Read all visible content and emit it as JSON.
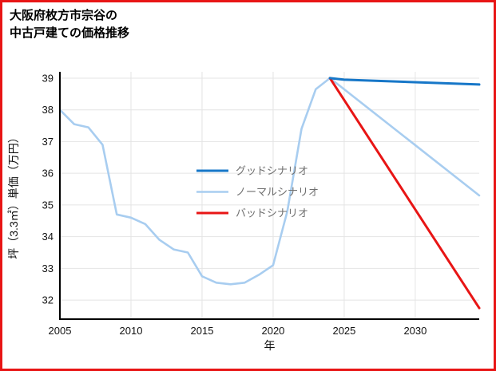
{
  "title": {
    "line1": "大阪府枚方市宗谷の",
    "line2": "中古戸建ての価格推移"
  },
  "colors": {
    "frame": "#e81515",
    "grid": "#e4e4e4",
    "axis": "#000000",
    "tick_text": "#111111",
    "legend_text": "#6f6f6f"
  },
  "chart_data": {
    "type": "line",
    "title": "大阪府枚方市宗谷の中古戸建ての価格推移",
    "xlabel": "年",
    "ylabel": "坪（3.3㎡）単価（万円）",
    "xlim": [
      2005,
      2034.5
    ],
    "ylim": [
      31.4,
      39.2
    ],
    "x_ticks": [
      2005,
      2010,
      2015,
      2020,
      2025,
      2030
    ],
    "y_ticks": [
      32,
      33,
      34,
      35,
      36,
      37,
      38,
      39
    ],
    "grid": true,
    "legend_position": "inside-center-left",
    "series": [
      {
        "name": "グッドシナリオ",
        "color": "#1777c8",
        "width": 3,
        "z": 3,
        "points": [
          [
            2024,
            39.0
          ],
          [
            2025,
            38.95
          ],
          [
            2034.5,
            38.8
          ]
        ]
      },
      {
        "name": "ノーマルシナリオ",
        "color": "#a8cdf0",
        "width": 2.6,
        "z": 1,
        "points": [
          [
            2005,
            38.0
          ],
          [
            2006,
            37.55
          ],
          [
            2007,
            37.45
          ],
          [
            2008,
            36.9
          ],
          [
            2009,
            34.7
          ],
          [
            2010,
            34.6
          ],
          [
            2011,
            34.4
          ],
          [
            2012,
            33.9
          ],
          [
            2013,
            33.6
          ],
          [
            2014,
            33.5
          ],
          [
            2015,
            32.75
          ],
          [
            2016,
            32.55
          ],
          [
            2017,
            32.5
          ],
          [
            2018,
            32.55
          ],
          [
            2019,
            32.8
          ],
          [
            2020,
            33.1
          ],
          [
            2021,
            34.8
          ],
          [
            2022,
            37.4
          ],
          [
            2023,
            38.65
          ],
          [
            2024,
            39.0
          ],
          [
            2034.5,
            35.3
          ]
        ]
      },
      {
        "name": "バッドシナリオ",
        "color": "#e81515",
        "width": 3,
        "z": 2,
        "points": [
          [
            2024,
            39.0
          ],
          [
            2034.5,
            31.75
          ]
        ]
      }
    ]
  }
}
